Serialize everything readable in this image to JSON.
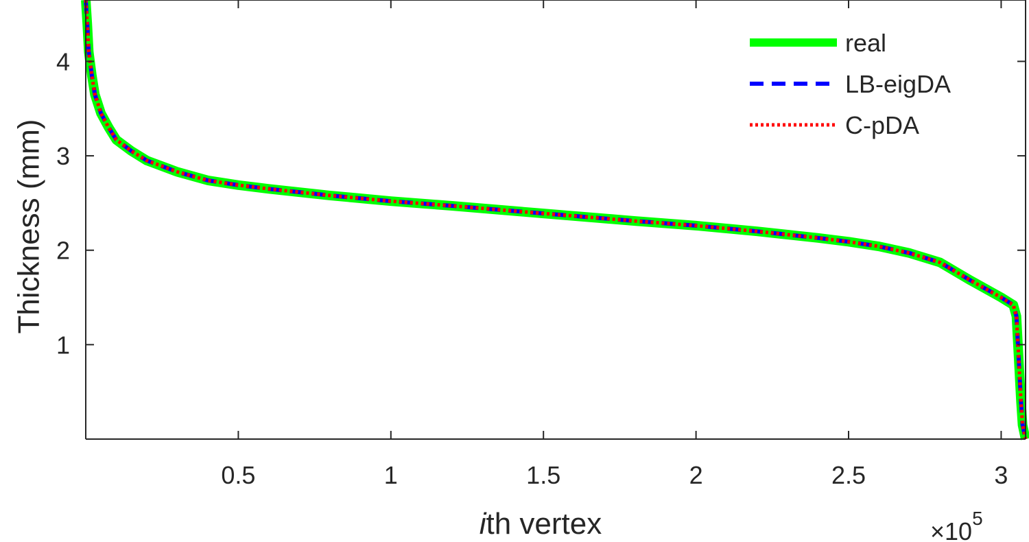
{
  "chart_data": {
    "type": "line",
    "xlabel_italic": "i",
    "xlabel_rest": "th vertex",
    "ylabel": "Thickness (mm)",
    "x_exponent_prefix": "×10",
    "x_exponent_power": "5",
    "xlim": [
      0,
      3.08
    ],
    "ylim": [
      0,
      4.65
    ],
    "x_scale_note": "×10^5",
    "xticks": [
      0.5,
      1,
      1.5,
      2,
      2.5,
      3
    ],
    "xtick_labels": [
      "0.5",
      "1",
      "1.5",
      "2",
      "2.5",
      "3"
    ],
    "yticks": [
      1,
      2,
      3,
      4
    ],
    "ytick_labels": [
      "1",
      "2",
      "3",
      "4"
    ],
    "grid": false,
    "legend_position": "top-right",
    "x": [
      0,
      0.005,
      0.01,
      0.02,
      0.03,
      0.05,
      0.075,
      0.1,
      0.15,
      0.2,
      0.3,
      0.4,
      0.5,
      0.6,
      0.8,
      1.0,
      1.2,
      1.5,
      1.8,
      2.0,
      2.2,
      2.4,
      2.5,
      2.6,
      2.7,
      2.8,
      2.9,
      3.0,
      3.04,
      3.05,
      3.055,
      3.06,
      3.065,
      3.07,
      3.08
    ],
    "y": [
      4.65,
      4.4,
      4.1,
      3.85,
      3.65,
      3.45,
      3.3,
      3.17,
      3.05,
      2.95,
      2.83,
      2.74,
      2.69,
      2.65,
      2.58,
      2.52,
      2.47,
      2.39,
      2.31,
      2.26,
      2.2,
      2.13,
      2.09,
      2.04,
      1.97,
      1.87,
      1.68,
      1.5,
      1.42,
      1.3,
      1.0,
      0.7,
      0.4,
      0.15,
      0.0
    ],
    "series": [
      {
        "name": "real",
        "color": "#00ff00",
        "style": "solid"
      },
      {
        "name": "LB-eigDA",
        "color": "#0000ff",
        "style": "dashed"
      },
      {
        "name": "C-pDA",
        "color": "#ff0000",
        "style": "dotted"
      }
    ]
  }
}
